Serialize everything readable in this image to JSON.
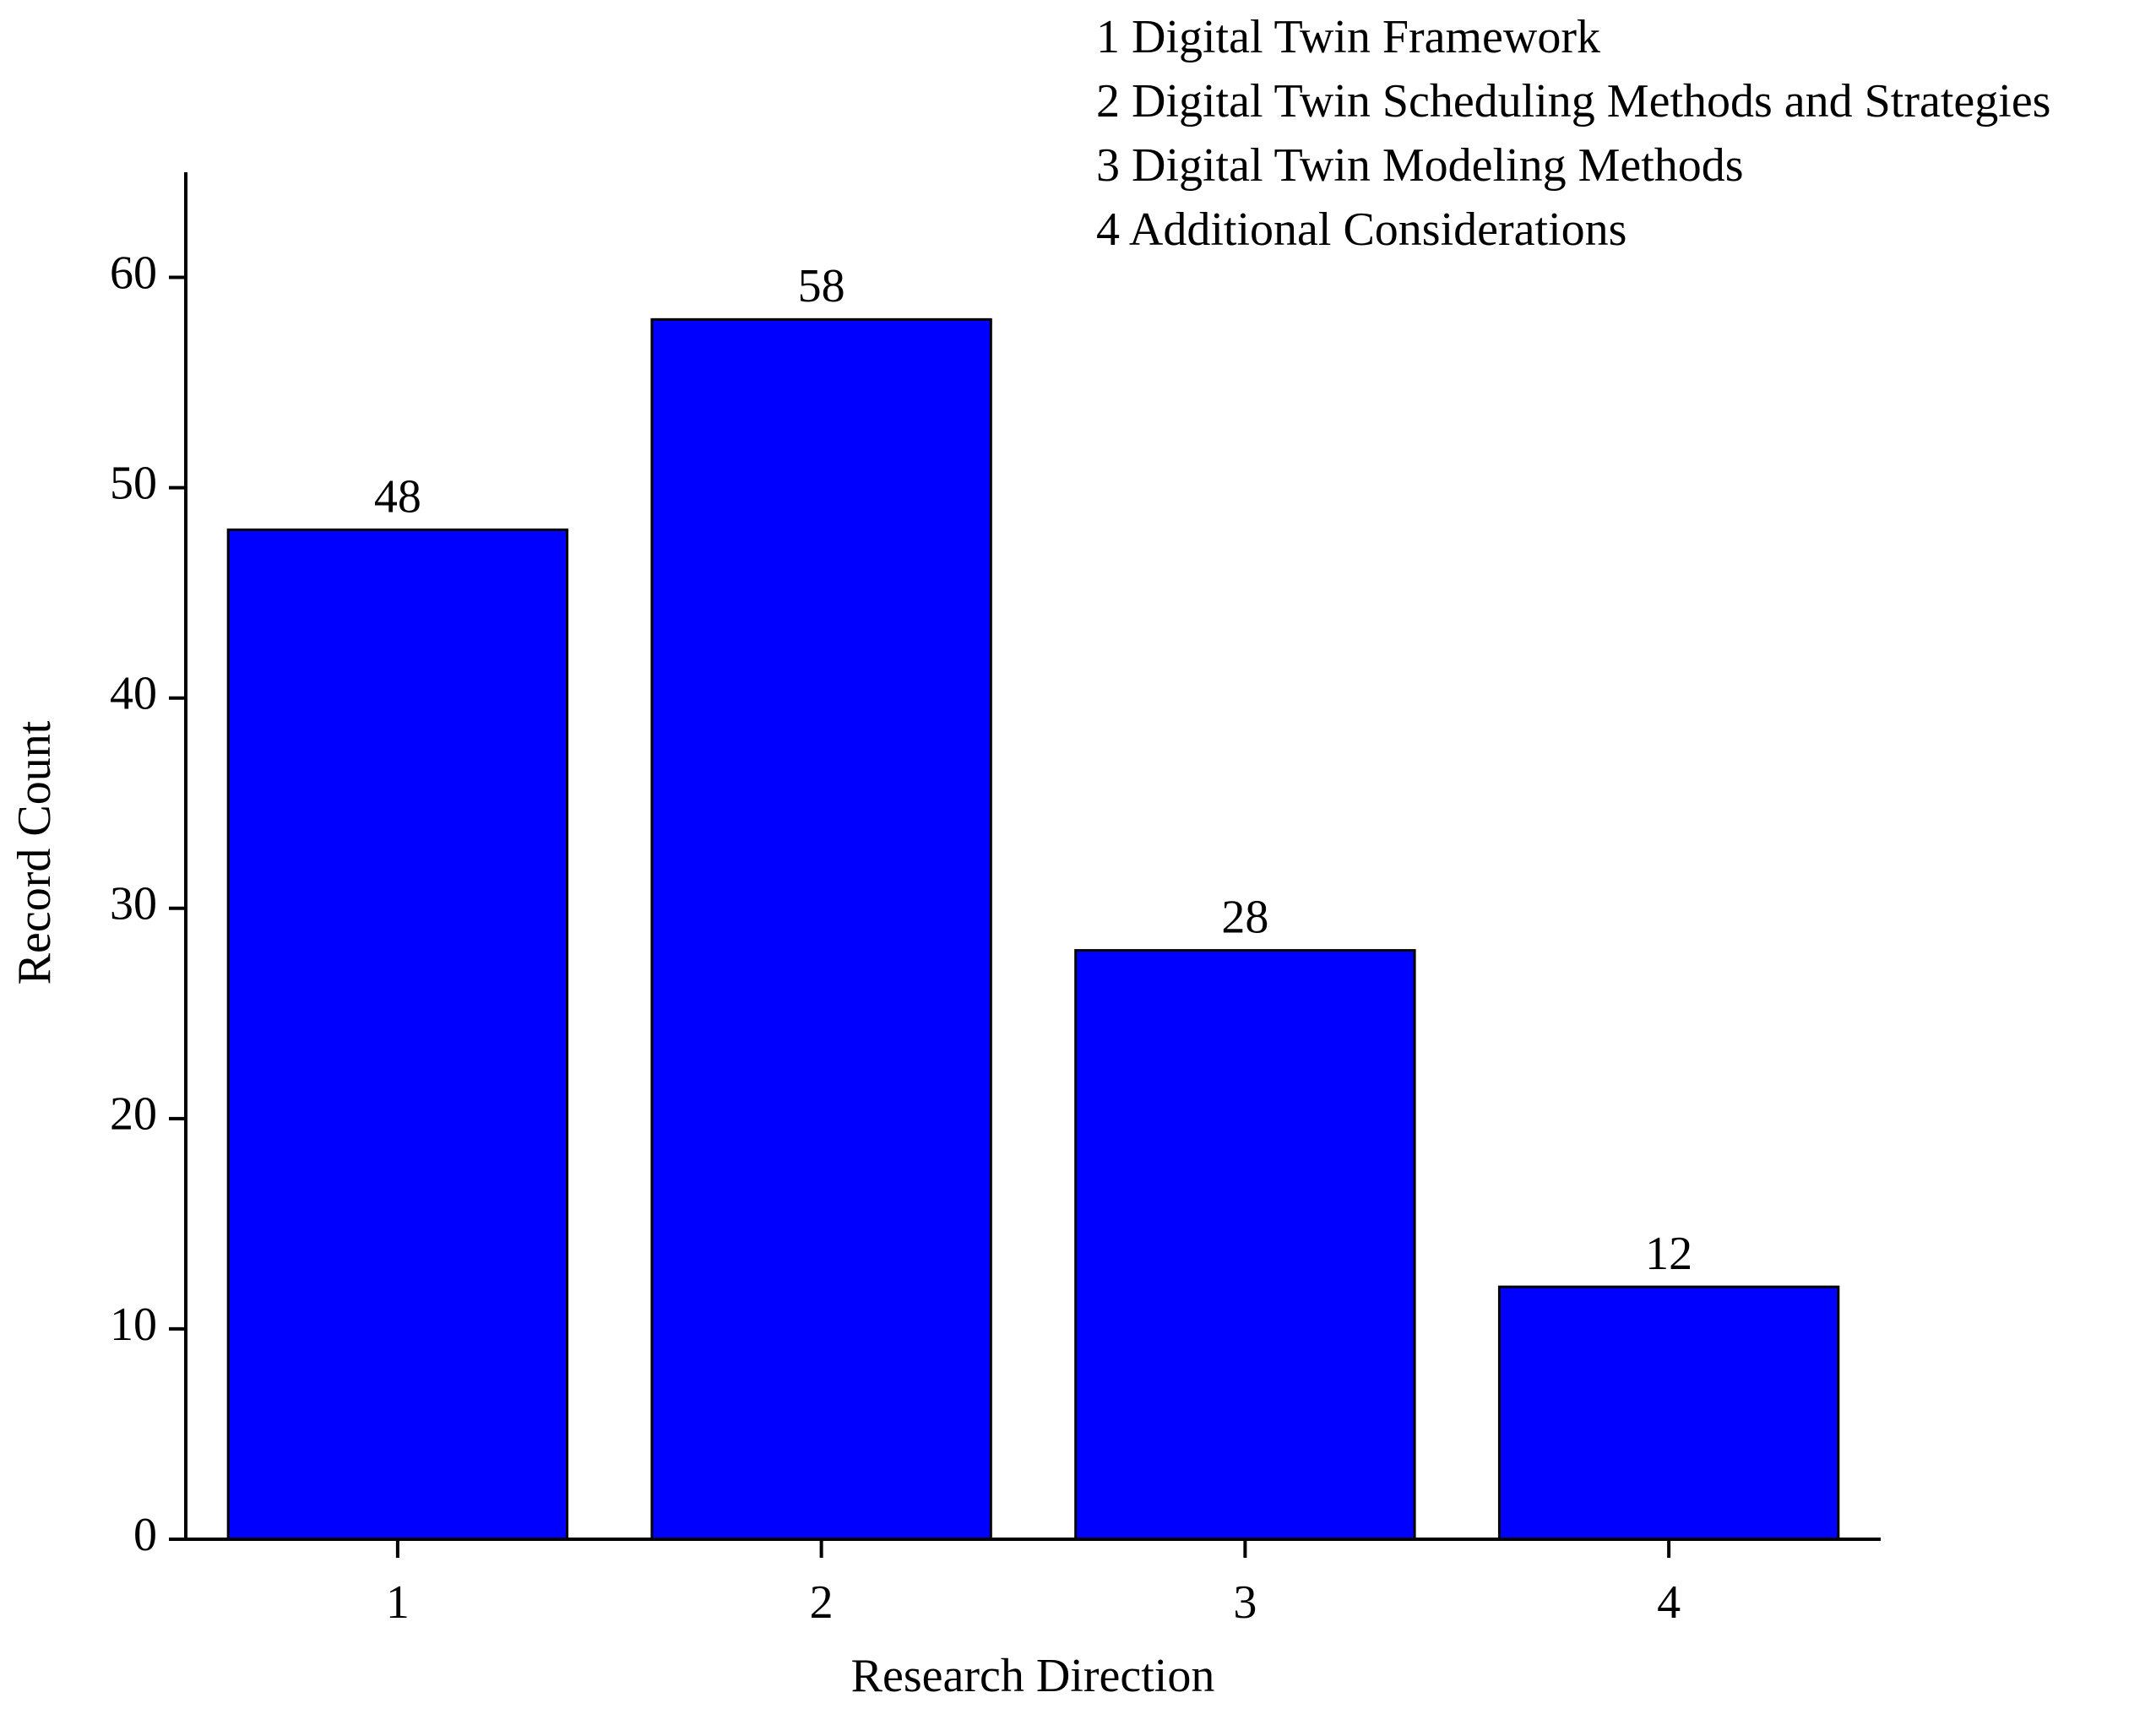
{
  "chart_data": {
    "type": "bar",
    "categories": [
      "1",
      "2",
      "3",
      "4"
    ],
    "values": [
      48,
      58,
      28,
      12
    ],
    "color": "#0000ff",
    "xlabel": "Research Direction",
    "ylabel": "Record Count",
    "ylim": [
      0,
      65
    ],
    "yticks": [
      0,
      10,
      20,
      30,
      40,
      50,
      60
    ],
    "notes": [
      "1 Digital Twin Framework",
      "2 Digital Twin Scheduling Methods and Strategies",
      "3 Digital Twin Modeling Methods",
      "4 Additional Considerations"
    ],
    "grid": false
  }
}
